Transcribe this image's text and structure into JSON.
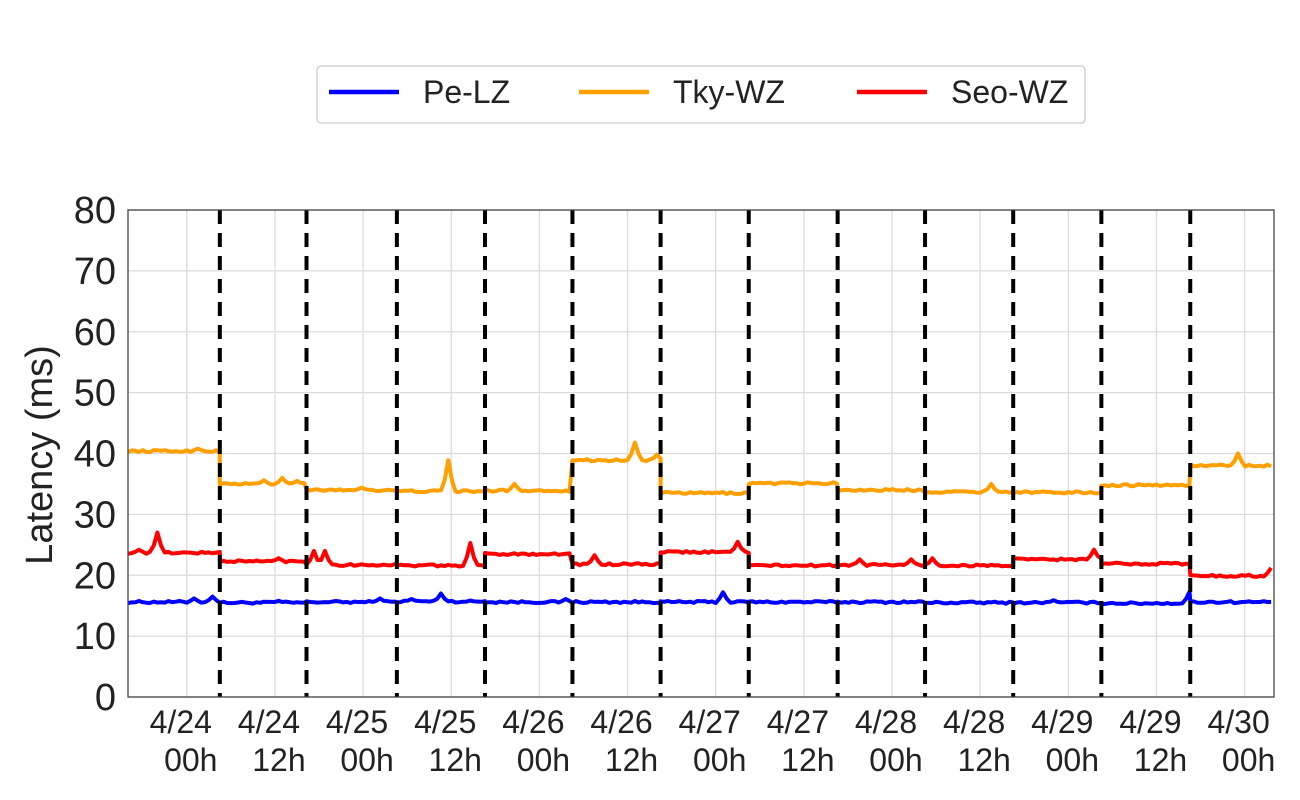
{
  "chart_data": {
    "type": "line",
    "title": "",
    "xlabel": "",
    "ylabel": "Latency (ms)",
    "ylim": [
      0,
      80
    ],
    "y_ticks": [
      0,
      10,
      20,
      30,
      40,
      50,
      60,
      70,
      80
    ],
    "grid": true,
    "legend_position": "top-center",
    "x_axis": {
      "unit": "hours since 4/24 00h",
      "min": -8,
      "max": 148,
      "tick_positions": [
        0,
        12,
        24,
        36,
        48,
        60,
        72,
        84,
        96,
        108,
        120,
        132,
        144
      ],
      "tick_labels": [
        [
          "4/24",
          "00h"
        ],
        [
          "4/24",
          "12h"
        ],
        [
          "4/25",
          "00h"
        ],
        [
          "4/25",
          "12h"
        ],
        [
          "4/26",
          "00h"
        ],
        [
          "4/26",
          "12h"
        ],
        [
          "4/27",
          "00h"
        ],
        [
          "4/27",
          "12h"
        ],
        [
          "4/28",
          "00h"
        ],
        [
          "4/28",
          "12h"
        ],
        [
          "4/29",
          "00h"
        ],
        [
          "4/29",
          "12h"
        ],
        [
          "4/30",
          "00h"
        ]
      ],
      "vlines": [
        4.5,
        16.3,
        28.6,
        40.6,
        52.5,
        64.5,
        76.5,
        88.6,
        100.5,
        112.5,
        124.5,
        136.6
      ]
    },
    "series": [
      {
        "name": "Pe-LZ",
        "color": "#0000ff",
        "segments": [
          {
            "start": -8,
            "end": 4.5,
            "base": 15.6,
            "spikes": [
              [
                3.5,
                16.5
              ],
              [
                1.2,
                16.2
              ]
            ]
          },
          {
            "start": 4.5,
            "end": 16.3,
            "base": 15.5,
            "spikes": [
              [
                12.5,
                15.8
              ]
            ]
          },
          {
            "start": 16.3,
            "end": 28.6,
            "base": 15.6,
            "spikes": [
              [
                26.5,
                16.2
              ]
            ]
          },
          {
            "start": 28.6,
            "end": 40.6,
            "base": 15.7,
            "spikes": [
              [
                34.5,
                17.0
              ],
              [
                30.5,
                16.1
              ]
            ]
          },
          {
            "start": 40.6,
            "end": 52.5,
            "base": 15.6,
            "spikes": [
              [
                51.5,
                16.1
              ]
            ]
          },
          {
            "start": 52.5,
            "end": 64.5,
            "base": 15.6,
            "spikes": []
          },
          {
            "start": 64.5,
            "end": 76.5,
            "base": 15.6,
            "spikes": [
              [
                73.0,
                17.2
              ]
            ]
          },
          {
            "start": 76.5,
            "end": 88.6,
            "base": 15.6,
            "spikes": []
          },
          {
            "start": 88.6,
            "end": 100.5,
            "base": 15.6,
            "spikes": []
          },
          {
            "start": 100.5,
            "end": 112.5,
            "base": 15.5,
            "spikes": []
          },
          {
            "start": 112.5,
            "end": 124.5,
            "base": 15.5,
            "spikes": [
              [
                118.0,
                15.9
              ]
            ]
          },
          {
            "start": 124.5,
            "end": 136.6,
            "base": 15.4,
            "spikes": [
              [
                136.6,
                17.3
              ]
            ]
          },
          {
            "start": 136.6,
            "end": 148,
            "base": 15.6,
            "spikes": []
          }
        ]
      },
      {
        "name": "Tky-WZ",
        "color": "#ffa000",
        "segments": [
          {
            "start": -8,
            "end": 4.5,
            "base": 40.4,
            "spikes": [
              [
                1.5,
                40.8
              ]
            ]
          },
          {
            "start": 4.5,
            "end": 16.3,
            "base": 35.0,
            "spikes": [
              [
                10.5,
                35.6
              ],
              [
                13.2,
                36.0
              ],
              [
                15.0,
                35.5
              ]
            ]
          },
          {
            "start": 16.3,
            "end": 28.6,
            "base": 34.0,
            "spikes": [
              [
                24.0,
                34.4
              ]
            ]
          },
          {
            "start": 28.6,
            "end": 40.6,
            "base": 33.8,
            "spikes": [
              [
                35.6,
                38.9
              ]
            ]
          },
          {
            "start": 40.6,
            "end": 52.5,
            "base": 33.9,
            "spikes": [
              [
                44.5,
                35.0
              ]
            ]
          },
          {
            "start": 52.5,
            "end": 64.5,
            "base": 38.9,
            "spikes": [
              [
                61.0,
                41.8
              ],
              [
                63.8,
                39.8
              ]
            ]
          },
          {
            "start": 64.5,
            "end": 76.5,
            "base": 33.5,
            "spikes": []
          },
          {
            "start": 76.5,
            "end": 88.6,
            "base": 35.1,
            "spikes": []
          },
          {
            "start": 88.6,
            "end": 100.5,
            "base": 34.0,
            "spikes": []
          },
          {
            "start": 100.5,
            "end": 112.5,
            "base": 33.7,
            "spikes": [
              [
                109.5,
                35.0
              ]
            ]
          },
          {
            "start": 112.5,
            "end": 124.5,
            "base": 33.6,
            "spikes": []
          },
          {
            "start": 124.5,
            "end": 136.6,
            "base": 34.8,
            "spikes": []
          },
          {
            "start": 136.6,
            "end": 148,
            "base": 38.0,
            "spikes": [
              [
                143.0,
                40.0
              ]
            ]
          }
        ]
      },
      {
        "name": "Seo-WZ",
        "color": "#ff0000",
        "segments": [
          {
            "start": -8,
            "end": 4.5,
            "base": 23.7,
            "spikes": [
              [
                -4.0,
                27.0
              ],
              [
                -6.5,
                24.2
              ]
            ]
          },
          {
            "start": 4.5,
            "end": 16.3,
            "base": 22.3,
            "spikes": [
              [
                12.5,
                22.8
              ]
            ]
          },
          {
            "start": 16.3,
            "end": 28.6,
            "base": 21.7,
            "spikes": [
              [
                17.5,
                24.0
              ],
              [
                19.0,
                24.0
              ]
            ]
          },
          {
            "start": 28.6,
            "end": 40.6,
            "base": 21.6,
            "spikes": [
              [
                38.5,
                25.3
              ]
            ]
          },
          {
            "start": 40.6,
            "end": 52.5,
            "base": 23.5,
            "spikes": []
          },
          {
            "start": 52.5,
            "end": 64.5,
            "base": 21.8,
            "spikes": [
              [
                55.5,
                23.3
              ]
            ]
          },
          {
            "start": 64.5,
            "end": 76.5,
            "base": 23.8,
            "spikes": [
              [
                75.0,
                25.5
              ]
            ]
          },
          {
            "start": 76.5,
            "end": 88.6,
            "base": 21.6,
            "spikes": []
          },
          {
            "start": 88.6,
            "end": 100.5,
            "base": 21.7,
            "spikes": [
              [
                91.5,
                22.6
              ],
              [
                98.5,
                22.6
              ]
            ]
          },
          {
            "start": 100.5,
            "end": 112.5,
            "base": 21.6,
            "spikes": [
              [
                101.5,
                22.8
              ]
            ]
          },
          {
            "start": 112.5,
            "end": 124.5,
            "base": 22.6,
            "spikes": [
              [
                123.5,
                24.2
              ]
            ]
          },
          {
            "start": 124.5,
            "end": 136.6,
            "base": 21.9,
            "spikes": []
          },
          {
            "start": 136.6,
            "end": 148,
            "base": 19.9,
            "spikes": [
              [
                147.8,
                21.2
              ]
            ]
          }
        ]
      }
    ]
  }
}
